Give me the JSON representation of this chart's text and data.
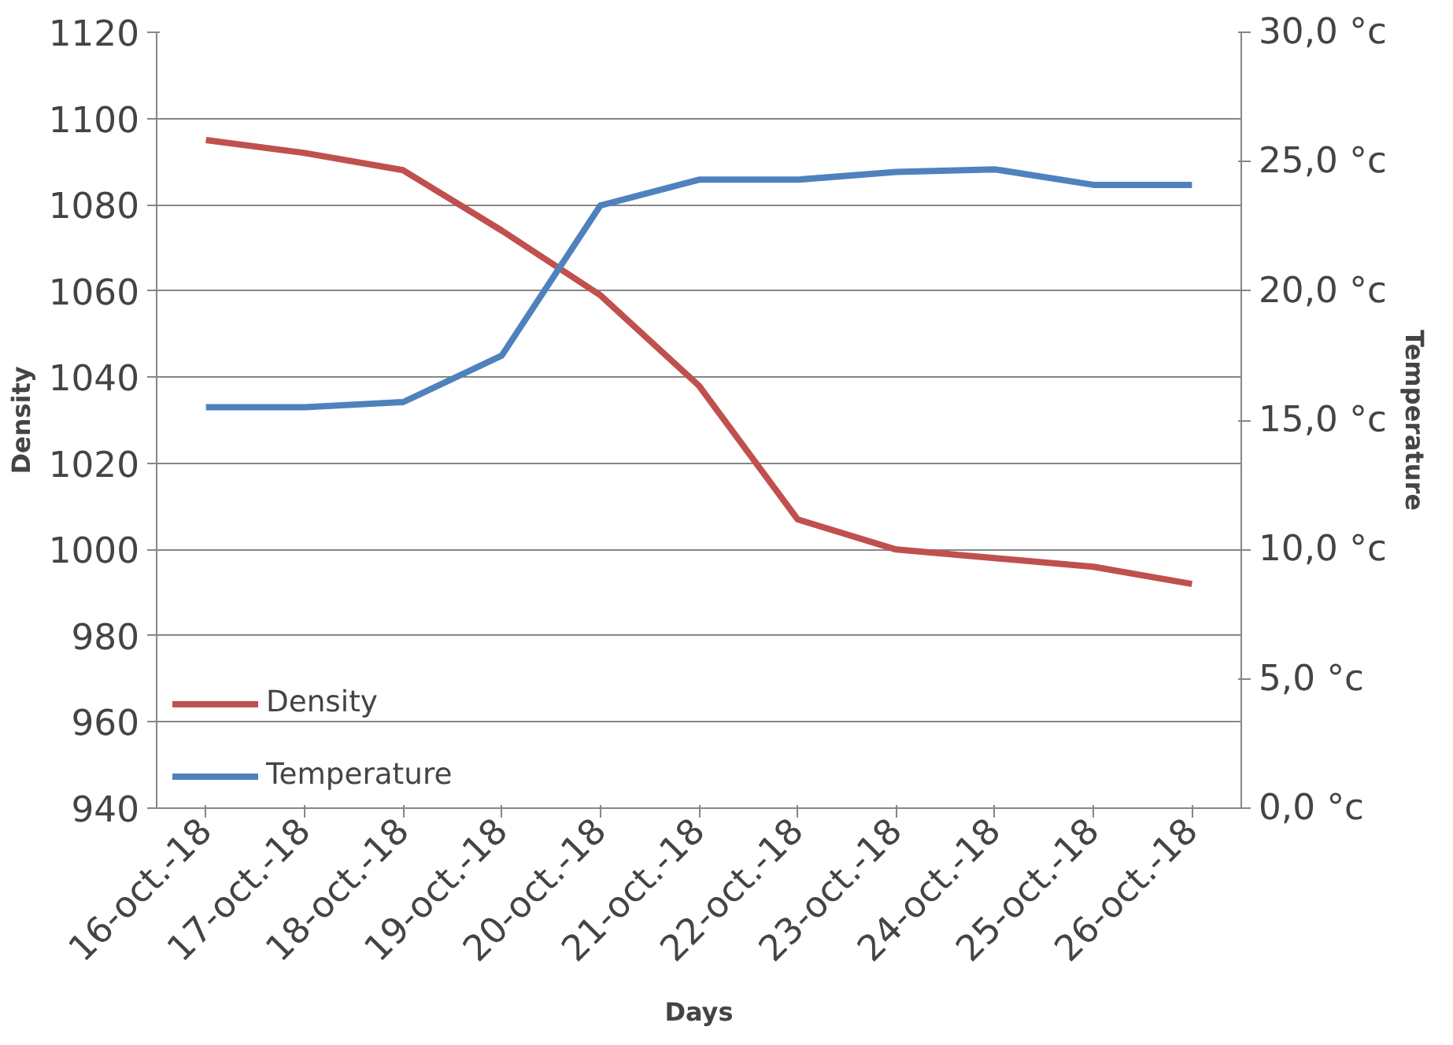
{
  "chart_data": {
    "type": "line",
    "xlabel": "Days",
    "ylabel": "Density",
    "y2label": "Temperature",
    "categories": [
      "16-oct.-18",
      "17-oct.-18",
      "18-oct.-18",
      "19-oct.-18",
      "20-oct.-18",
      "21-oct.-18",
      "22-oct.-18",
      "23-oct.-18",
      "24-oct.-18",
      "25-oct.-18",
      "26-oct.-18"
    ],
    "series": [
      {
        "name": "Density",
        "color": "#c0504d",
        "values": [
          1095,
          1092,
          1088,
          1074,
          1059,
          1038,
          1007,
          1000,
          998,
          996,
          992
        ]
      },
      {
        "name": "Temperature",
        "color": "#4f81bd",
        "axis": "y2",
        "values": [
          15.5,
          15.5,
          15.7,
          17.5,
          23.3,
          24.3,
          24.3,
          24.6,
          24.7,
          24.1,
          24.1
        ]
      }
    ],
    "ylim": [
      940,
      1120
    ],
    "yticks": [
      940,
      960,
      980,
      1000,
      1020,
      1040,
      1060,
      1080,
      1100,
      1120
    ],
    "y2lim": [
      0,
      30
    ],
    "y2ticks": [
      {
        "value": 0,
        "label": "0,0 °c"
      },
      {
        "value": 5,
        "label": "5,0 °c"
      },
      {
        "value": 10,
        "label": "10,0 °c"
      },
      {
        "value": 15,
        "label": "15,0 °c"
      },
      {
        "value": 20,
        "label": "20,0 °c"
      },
      {
        "value": 25,
        "label": "25,0 °c"
      },
      {
        "value": 30,
        "label": "30,0 °c"
      }
    ],
    "grid": "y",
    "legend": "bottom left",
    "marker": "none",
    "line_style": "solid"
  }
}
